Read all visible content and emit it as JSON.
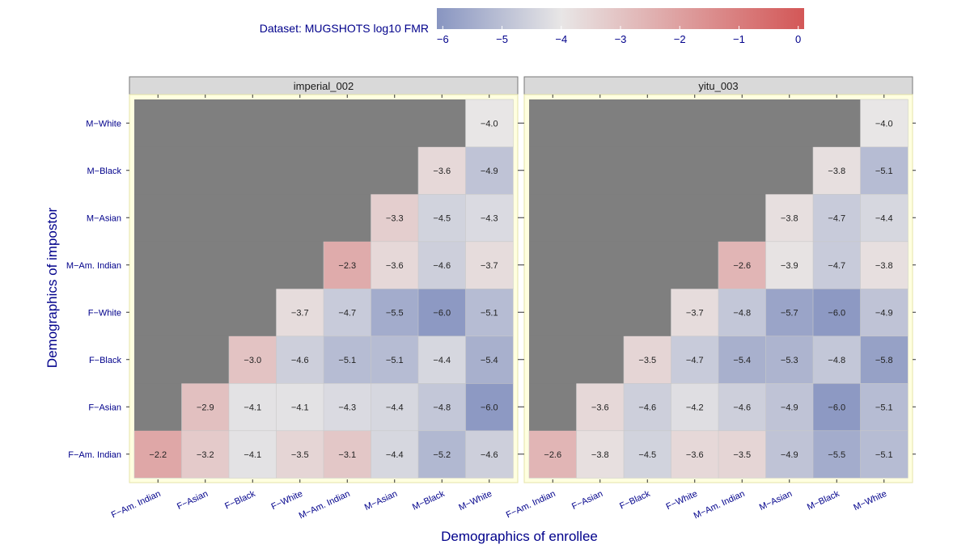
{
  "legend": {
    "title": "Dataset: MUGSHOTS log10 FMR",
    "ticks": [
      "−6",
      "−5",
      "−4",
      "−3",
      "−2",
      "−1",
      "0"
    ],
    "range": [
      -6.1,
      0.1
    ],
    "colors": {
      "low": "#8895c1",
      "mid": "#e8e6e6",
      "high": "#d35757"
    }
  },
  "chart_data": [
    {
      "type": "heatmap",
      "title": "imperial_002",
      "xlabel": "Demographics of enrollee",
      "ylabel": "Demographics of impostor",
      "x_categories": [
        "F−Am. Indian",
        "F−Asian",
        "F−Black",
        "F−White",
        "M−Am. Indian",
        "M−Asian",
        "M−Black",
        "M−White"
      ],
      "y_categories": [
        "F−Am. Indian",
        "F−Asian",
        "F−Black",
        "F−White",
        "M−Am. Indian",
        "M−Asian",
        "M−Black",
        "M−White"
      ],
      "values": [
        [
          -2.2,
          -3.2,
          -4.1,
          -3.5,
          -3.1,
          -4.4,
          -5.2,
          -4.6
        ],
        [
          null,
          -2.9,
          -4.1,
          -4.1,
          -4.3,
          -4.4,
          -4.8,
          -6.0
        ],
        [
          null,
          null,
          -3.0,
          -4.6,
          -5.1,
          -5.1,
          -4.4,
          -5.4
        ],
        [
          null,
          null,
          null,
          -3.7,
          -4.7,
          -5.5,
          -6.0,
          -5.1
        ],
        [
          null,
          null,
          null,
          null,
          -2.3,
          -3.6,
          -4.6,
          -3.7
        ],
        [
          null,
          null,
          null,
          null,
          null,
          -3.3,
          -4.5,
          -4.3
        ],
        [
          null,
          null,
          null,
          null,
          null,
          null,
          -3.6,
          -4.9
        ],
        [
          null,
          null,
          null,
          null,
          null,
          null,
          null,
          -4.0
        ]
      ]
    },
    {
      "type": "heatmap",
      "title": "yitu_003",
      "xlabel": "Demographics of enrollee",
      "ylabel": "Demographics of impostor",
      "x_categories": [
        "F−Am. Indian",
        "F−Asian",
        "F−Black",
        "F−White",
        "M−Am. Indian",
        "M−Asian",
        "M−Black",
        "M−White"
      ],
      "y_categories": [
        "F−Am. Indian",
        "F−Asian",
        "F−Black",
        "F−White",
        "M−Am. Indian",
        "M−Asian",
        "M−Black",
        "M−White"
      ],
      "values": [
        [
          -2.6,
          -3.8,
          -4.5,
          -3.6,
          -3.5,
          -4.9,
          -5.5,
          -5.1
        ],
        [
          null,
          -3.6,
          -4.6,
          -4.2,
          -4.6,
          -4.9,
          -6.0,
          -5.1
        ],
        [
          null,
          null,
          -3.5,
          -4.7,
          -5.4,
          -5.3,
          -4.8,
          -5.8
        ],
        [
          null,
          null,
          null,
          -3.7,
          -4.8,
          -5.7,
          -6.0,
          -4.9
        ],
        [
          null,
          null,
          null,
          null,
          -2.6,
          -3.9,
          -4.7,
          -3.8
        ],
        [
          null,
          null,
          null,
          null,
          null,
          -3.8,
          -4.7,
          -4.4
        ],
        [
          null,
          null,
          null,
          null,
          null,
          null,
          -3.8,
          -5.1
        ],
        [
          null,
          null,
          null,
          null,
          null,
          null,
          null,
          -4.0
        ]
      ]
    }
  ],
  "axis_labels": {
    "x": "Demographics of enrollee",
    "y": "Demographics of impostor"
  },
  "styles": {
    "na_color": "#7f7f7f",
    "strip_fill": "#d9d9d9",
    "panel_background": "#ffffe0",
    "label_color": "#00008b",
    "value_text_color": "#222222"
  }
}
